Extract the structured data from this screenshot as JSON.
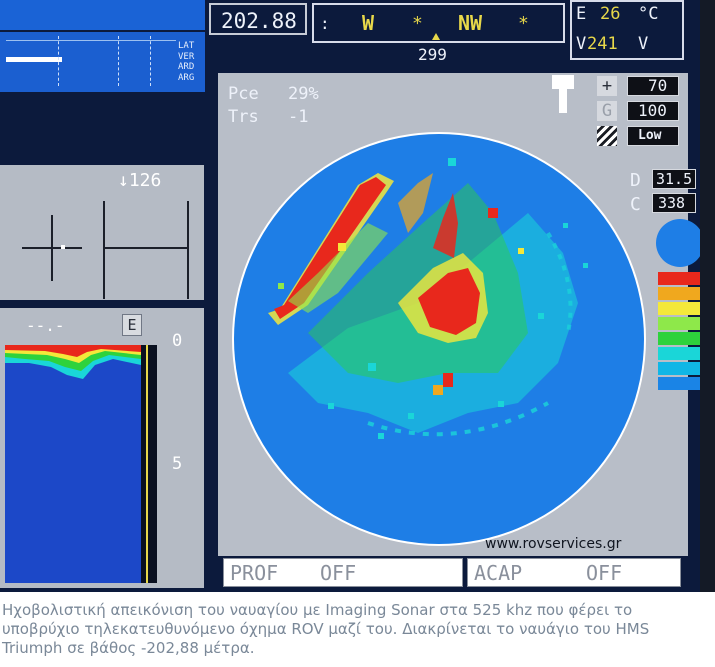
{
  "hud": {
    "depth": "202.88",
    "compass": {
      "left_mark": ":",
      "w": "W",
      "nw": "NW",
      "star": "*",
      "heading": "299"
    },
    "temp_prefix": "E",
    "temp_value": "26",
    "temp_unit": "°C",
    "volt_prefix": "V",
    "volt_value": "241",
    "volt_unit": "V"
  },
  "status_panel": {
    "labels": [
      "LAT",
      "VER",
      "ARD",
      "ARG"
    ]
  },
  "tilt_panel": {
    "value": "↓126"
  },
  "sounder": {
    "reading": "--.-",
    "mode_button": "E",
    "scale_top": "0",
    "scale_mid": "5"
  },
  "sonar": {
    "pce_label": "Pce",
    "pce_value": "29%",
    "trs_label": "Trs",
    "trs_value": "-1",
    "watermark": "www.rovservices.gr"
  },
  "controls": {
    "plus_symbol": "+",
    "plus_value": "70",
    "gain_symbol": "G",
    "gain_value": "100",
    "low_label": "Low",
    "d_label": "D",
    "d_value": "31.5",
    "c_label": "C",
    "c_value": "338"
  },
  "palette": [
    "#e8281c",
    "#f0a81e",
    "#f4e83a",
    "#8ee84a",
    "#2ed23c",
    "#1ad6d8",
    "#10b6e6",
    "#1a84e6"
  ],
  "bottom_bar": {
    "prof": "PROF",
    "prof_state": "OFF",
    "acap": "ACAP",
    "acap_state": "OFF"
  },
  "caption": "Ηχοβολιστική απεικόνιση του ναυαγίου με Imaging Sonar στα 525 khz που φέρει το υποβρύχιο τηλεκατευθυνόμενο όχημα ROV μαζί του. Διακρίνεται το ναυάγιο του HMS Triumph σε βάθος -202,88 μέτρα."
}
